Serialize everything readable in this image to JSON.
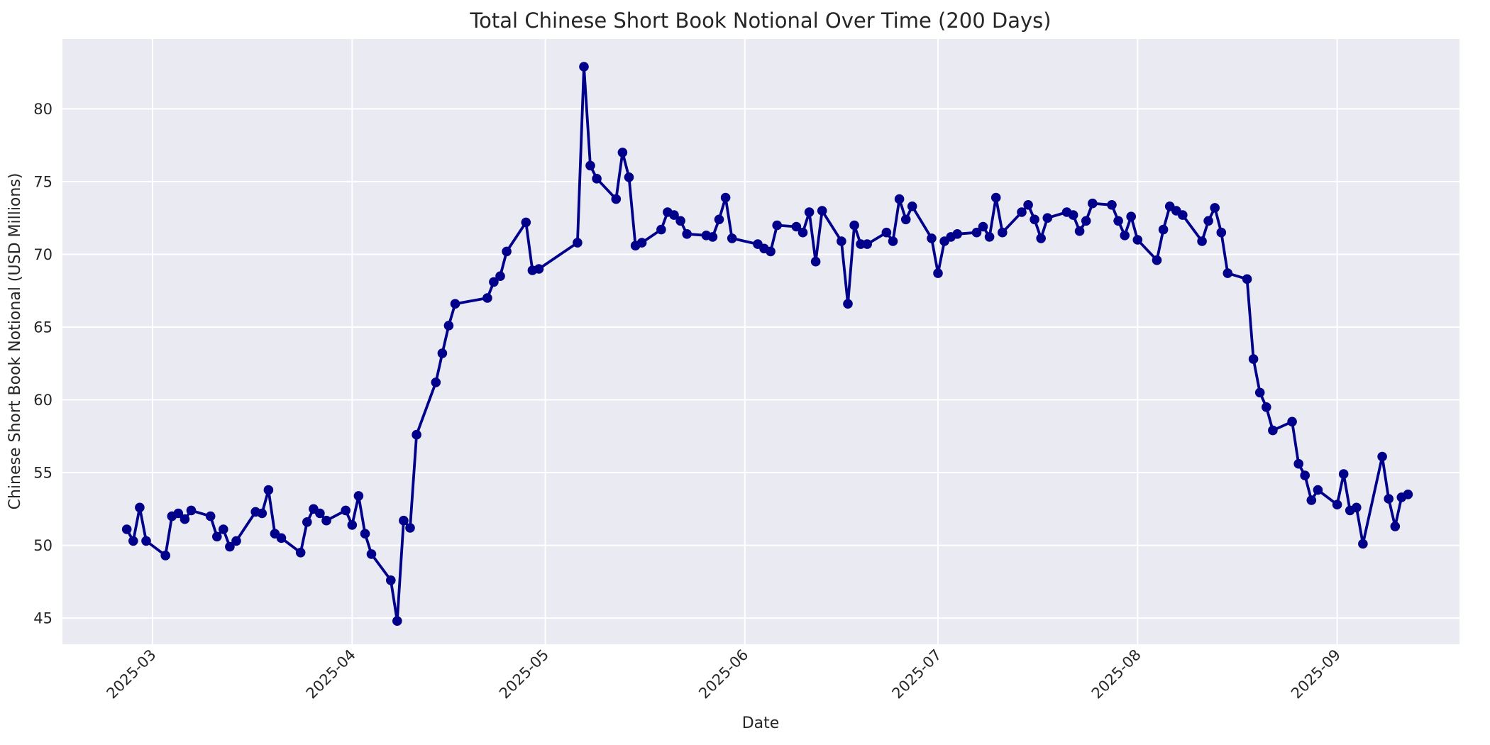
{
  "figure": {
    "background": "#ffffff"
  },
  "chart_data": {
    "type": "line",
    "title": "Total Chinese Short Book Notional Over Time (200 Days)",
    "xlabel": "Date",
    "ylabel": "Chinese Short Book Notional (USD Millions)",
    "grid": true,
    "legend_position": "none",
    "plot_background": "#eaeaf2",
    "grid_color": "#ffffff",
    "text_color": "#262626",
    "line_color": "#00008b",
    "marker": "circle",
    "x_ticks": [
      {
        "label": "2025-03",
        "date": "2025-03-01"
      },
      {
        "label": "2025-04",
        "date": "2025-04-01"
      },
      {
        "label": "2025-05",
        "date": "2025-05-01"
      },
      {
        "label": "2025-06",
        "date": "2025-06-01"
      },
      {
        "label": "2025-07",
        "date": "2025-07-01"
      },
      {
        "label": "2025-08",
        "date": "2025-08-01"
      },
      {
        "label": "2025-09",
        "date": "2025-09-01"
      }
    ],
    "y_ticks": [
      45,
      50,
      55,
      60,
      65,
      70,
      75,
      80
    ],
    "ylim": [
      43.2,
      84.8
    ],
    "xlim_dates": [
      "2025-02-15",
      "2025-09-20"
    ],
    "series": [
      {
        "name": "Total Chinese Short Book Notional",
        "dates": [
          "2025-02-25",
          "2025-02-26",
          "2025-02-27",
          "2025-02-28",
          "2025-03-03",
          "2025-03-04",
          "2025-03-05",
          "2025-03-06",
          "2025-03-07",
          "2025-03-10",
          "2025-03-11",
          "2025-03-12",
          "2025-03-13",
          "2025-03-14",
          "2025-03-17",
          "2025-03-18",
          "2025-03-19",
          "2025-03-20",
          "2025-03-21",
          "2025-03-24",
          "2025-03-25",
          "2025-03-26",
          "2025-03-27",
          "2025-03-28",
          "2025-03-31",
          "2025-04-01",
          "2025-04-02",
          "2025-04-03",
          "2025-04-04",
          "2025-04-07",
          "2025-04-08",
          "2025-04-09",
          "2025-04-10",
          "2025-04-11",
          "2025-04-14",
          "2025-04-15",
          "2025-04-16",
          "2025-04-17",
          "2025-04-22",
          "2025-04-23",
          "2025-04-24",
          "2025-04-25",
          "2025-04-28",
          "2025-04-29",
          "2025-04-30",
          "2025-05-06",
          "2025-05-07",
          "2025-05-08",
          "2025-05-09",
          "2025-05-12",
          "2025-05-13",
          "2025-05-14",
          "2025-05-15",
          "2025-05-16",
          "2025-05-19",
          "2025-05-20",
          "2025-05-21",
          "2025-05-22",
          "2025-05-23",
          "2025-05-26",
          "2025-05-27",
          "2025-05-28",
          "2025-05-29",
          "2025-05-30",
          "2025-06-03",
          "2025-06-04",
          "2025-06-05",
          "2025-06-06",
          "2025-06-09",
          "2025-06-10",
          "2025-06-11",
          "2025-06-12",
          "2025-06-13",
          "2025-06-16",
          "2025-06-17",
          "2025-06-18",
          "2025-06-19",
          "2025-06-20",
          "2025-06-23",
          "2025-06-24",
          "2025-06-25",
          "2025-06-26",
          "2025-06-27",
          "2025-06-30",
          "2025-07-01",
          "2025-07-02",
          "2025-07-03",
          "2025-07-04",
          "2025-07-07",
          "2025-07-08",
          "2025-07-09",
          "2025-07-10",
          "2025-07-11",
          "2025-07-14",
          "2025-07-15",
          "2025-07-16",
          "2025-07-17",
          "2025-07-18",
          "2025-07-21",
          "2025-07-22",
          "2025-07-23",
          "2025-07-24",
          "2025-07-25",
          "2025-07-28",
          "2025-07-29",
          "2025-07-30",
          "2025-07-31",
          "2025-08-01",
          "2025-08-04",
          "2025-08-05",
          "2025-08-06",
          "2025-08-07",
          "2025-08-08",
          "2025-08-11",
          "2025-08-12",
          "2025-08-13",
          "2025-08-14",
          "2025-08-15",
          "2025-08-18",
          "2025-08-19",
          "2025-08-20",
          "2025-08-21",
          "2025-08-22",
          "2025-08-25",
          "2025-08-26",
          "2025-08-27",
          "2025-08-28",
          "2025-08-29",
          "2025-09-01",
          "2025-09-02",
          "2025-09-03",
          "2025-09-04",
          "2025-09-05",
          "2025-09-08",
          "2025-09-09",
          "2025-09-10",
          "2025-09-11",
          "2025-09-12"
        ],
        "values": [
          51.1,
          50.3,
          52.6,
          50.3,
          49.3,
          52.0,
          52.2,
          51.8,
          52.4,
          52.0,
          50.6,
          51.1,
          49.9,
          50.3,
          52.3,
          52.2,
          53.8,
          50.8,
          50.5,
          49.5,
          51.6,
          52.5,
          52.2,
          51.7,
          52.4,
          51.4,
          53.4,
          50.8,
          49.4,
          47.6,
          44.8,
          51.7,
          51.2,
          57.6,
          61.2,
          63.2,
          65.1,
          66.6,
          67.0,
          68.1,
          68.5,
          70.2,
          72.2,
          68.9,
          69.0,
          70.8,
          82.9,
          76.1,
          75.2,
          73.8,
          77.0,
          75.3,
          70.6,
          70.8,
          71.7,
          72.9,
          72.7,
          72.3,
          71.4,
          71.3,
          71.2,
          72.4,
          73.9,
          71.1,
          70.7,
          70.4,
          70.2,
          72.0,
          71.9,
          71.5,
          72.9,
          69.5,
          73.0,
          70.9,
          66.6,
          72.0,
          70.7,
          70.7,
          71.5,
          70.9,
          73.8,
          72.4,
          73.3,
          71.1,
          68.7,
          70.9,
          71.2,
          71.4,
          71.5,
          71.9,
          71.2,
          73.9,
          71.5,
          72.9,
          73.4,
          72.4,
          71.1,
          72.5,
          72.9,
          72.7,
          71.6,
          72.3,
          73.5,
          73.4,
          72.3,
          71.3,
          72.6,
          71.0,
          69.6,
          71.7,
          73.3,
          73.0,
          72.7,
          70.9,
          72.3,
          73.2,
          71.5,
          68.7,
          68.3,
          62.8,
          60.5,
          59.5,
          57.9,
          58.5,
          55.6,
          54.8,
          53.1,
          53.8,
          52.8,
          54.9,
          52.4,
          52.6,
          50.1,
          56.1,
          53.2,
          51.3,
          53.3,
          53.5
        ]
      }
    ]
  }
}
